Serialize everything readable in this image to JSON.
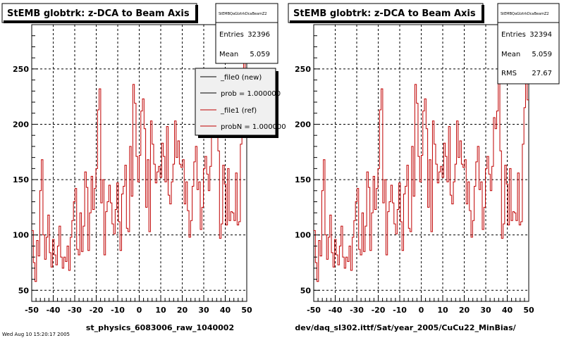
{
  "footer_label": "Wed Aug 10 15:20:17 2005",
  "chart_data": [
    {
      "type": "line",
      "title": "StEMB globtrk: z-DCA to Beam Axis",
      "xlabel": "st_physics_6083006_raw_1040002",
      "ylabel": "",
      "xlim": [
        -50,
        50
      ],
      "ylim": [
        40,
        290
      ],
      "x_ticks": [
        -50,
        -40,
        -30,
        -20,
        -10,
        0,
        10,
        20,
        30,
        40,
        50
      ],
      "y_ticks": [
        50,
        100,
        150,
        200,
        250
      ],
      "grid": true,
      "stats": {
        "name": "StEMBQaGlztrkDcaBeamZ2",
        "entries_label": "Entries",
        "entries": "32396",
        "mean_label": "Mean",
        "mean": "5.059"
      },
      "legend": {
        "position": "top-right",
        "entries": [
          "_file0 (new)",
          "prob = 1.000000",
          "_file1 (ref)",
          "probN = 1.000000"
        ]
      },
      "series": [
        {
          "name": "_file1 (ref)",
          "color": "#c00000",
          "bin_edges": [
            -50,
            50
          ],
          "values": [
            104,
            75,
            58,
            95,
            81,
            140,
            168,
            100,
            78,
            98,
            118,
            84,
            71,
            96,
            82,
            73,
            90,
            108,
            80,
            70,
            80,
            76,
            90,
            68,
            98,
            113,
            130,
            142,
            87,
            82,
            120,
            85,
            108,
            157,
            143,
            86,
            120,
            153,
            123,
            142,
            160,
            213,
            232,
            129,
            150,
            82,
            121,
            130,
            145,
            129,
            110,
            101,
            123,
            147,
            112,
            86,
            137,
            144,
            163,
            106,
            103,
            180,
            135,
            236,
            219,
            171,
            148,
            172,
            212,
            223,
            196,
            125,
            168,
            103,
            203,
            182,
            164,
            147,
            157,
            162,
            152,
            183,
            171,
            148,
            198,
            136,
            128,
            148,
            164,
            203,
            170,
            185,
            164,
            161,
            168,
            128,
            148,
            122,
            98,
            113,
            144,
            166,
            180,
            141,
            148,
            105,
            125,
            160,
            171,
            155,
            140,
            162,
            206,
            196,
            212,
            242,
            176,
            97,
            110,
            163,
            146,
            109,
            160,
            113,
            121,
            120,
            113,
            156,
            109,
            112,
            182,
            215,
            279,
            222
          ]
        }
      ]
    },
    {
      "type": "line",
      "title": "StEMB globtrk: z-DCA to Beam Axis",
      "xlabel": "dev/daq_sl302.ittf/Sat/year_2005/CuCu22_MinBias/",
      "ylabel": "",
      "xlim": [
        -50,
        50
      ],
      "ylim": [
        40,
        290
      ],
      "x_ticks": [
        -50,
        -40,
        -30,
        -20,
        -10,
        0,
        10,
        20,
        30,
        40,
        50
      ],
      "y_ticks": [
        50,
        100,
        150,
        200,
        250
      ],
      "grid": true,
      "stats": {
        "name": "StEMBQaGlztrkDcaBeamZ2",
        "entries_label": "Entries",
        "entries": "32394",
        "mean_label": "Mean",
        "mean": "5.059",
        "rms_label": "RMS",
        "rms": "27.67"
      },
      "series": [
        {
          "name": "",
          "color": "#c00000",
          "bin_edges": [
            -50,
            50
          ],
          "values": [
            104,
            75,
            58,
            95,
            81,
            140,
            168,
            100,
            78,
            98,
            118,
            84,
            71,
            96,
            82,
            73,
            90,
            108,
            80,
            70,
            80,
            76,
            90,
            68,
            98,
            113,
            130,
            142,
            87,
            82,
            120,
            85,
            108,
            157,
            143,
            86,
            120,
            153,
            123,
            142,
            160,
            213,
            232,
            129,
            150,
            82,
            121,
            130,
            145,
            129,
            110,
            101,
            123,
            147,
            112,
            86,
            137,
            144,
            163,
            106,
            103,
            180,
            135,
            236,
            219,
            171,
            148,
            172,
            212,
            223,
            196,
            125,
            168,
            103,
            203,
            182,
            164,
            147,
            157,
            162,
            152,
            183,
            171,
            148,
            198,
            136,
            128,
            148,
            164,
            203,
            170,
            185,
            164,
            161,
            168,
            128,
            148,
            122,
            98,
            113,
            144,
            166,
            180,
            141,
            148,
            105,
            125,
            160,
            171,
            155,
            140,
            162,
            206,
            196,
            212,
            242,
            176,
            97,
            110,
            163,
            146,
            109,
            160,
            113,
            121,
            120,
            113,
            156,
            109,
            112,
            182,
            215,
            279,
            222
          ]
        }
      ]
    }
  ]
}
